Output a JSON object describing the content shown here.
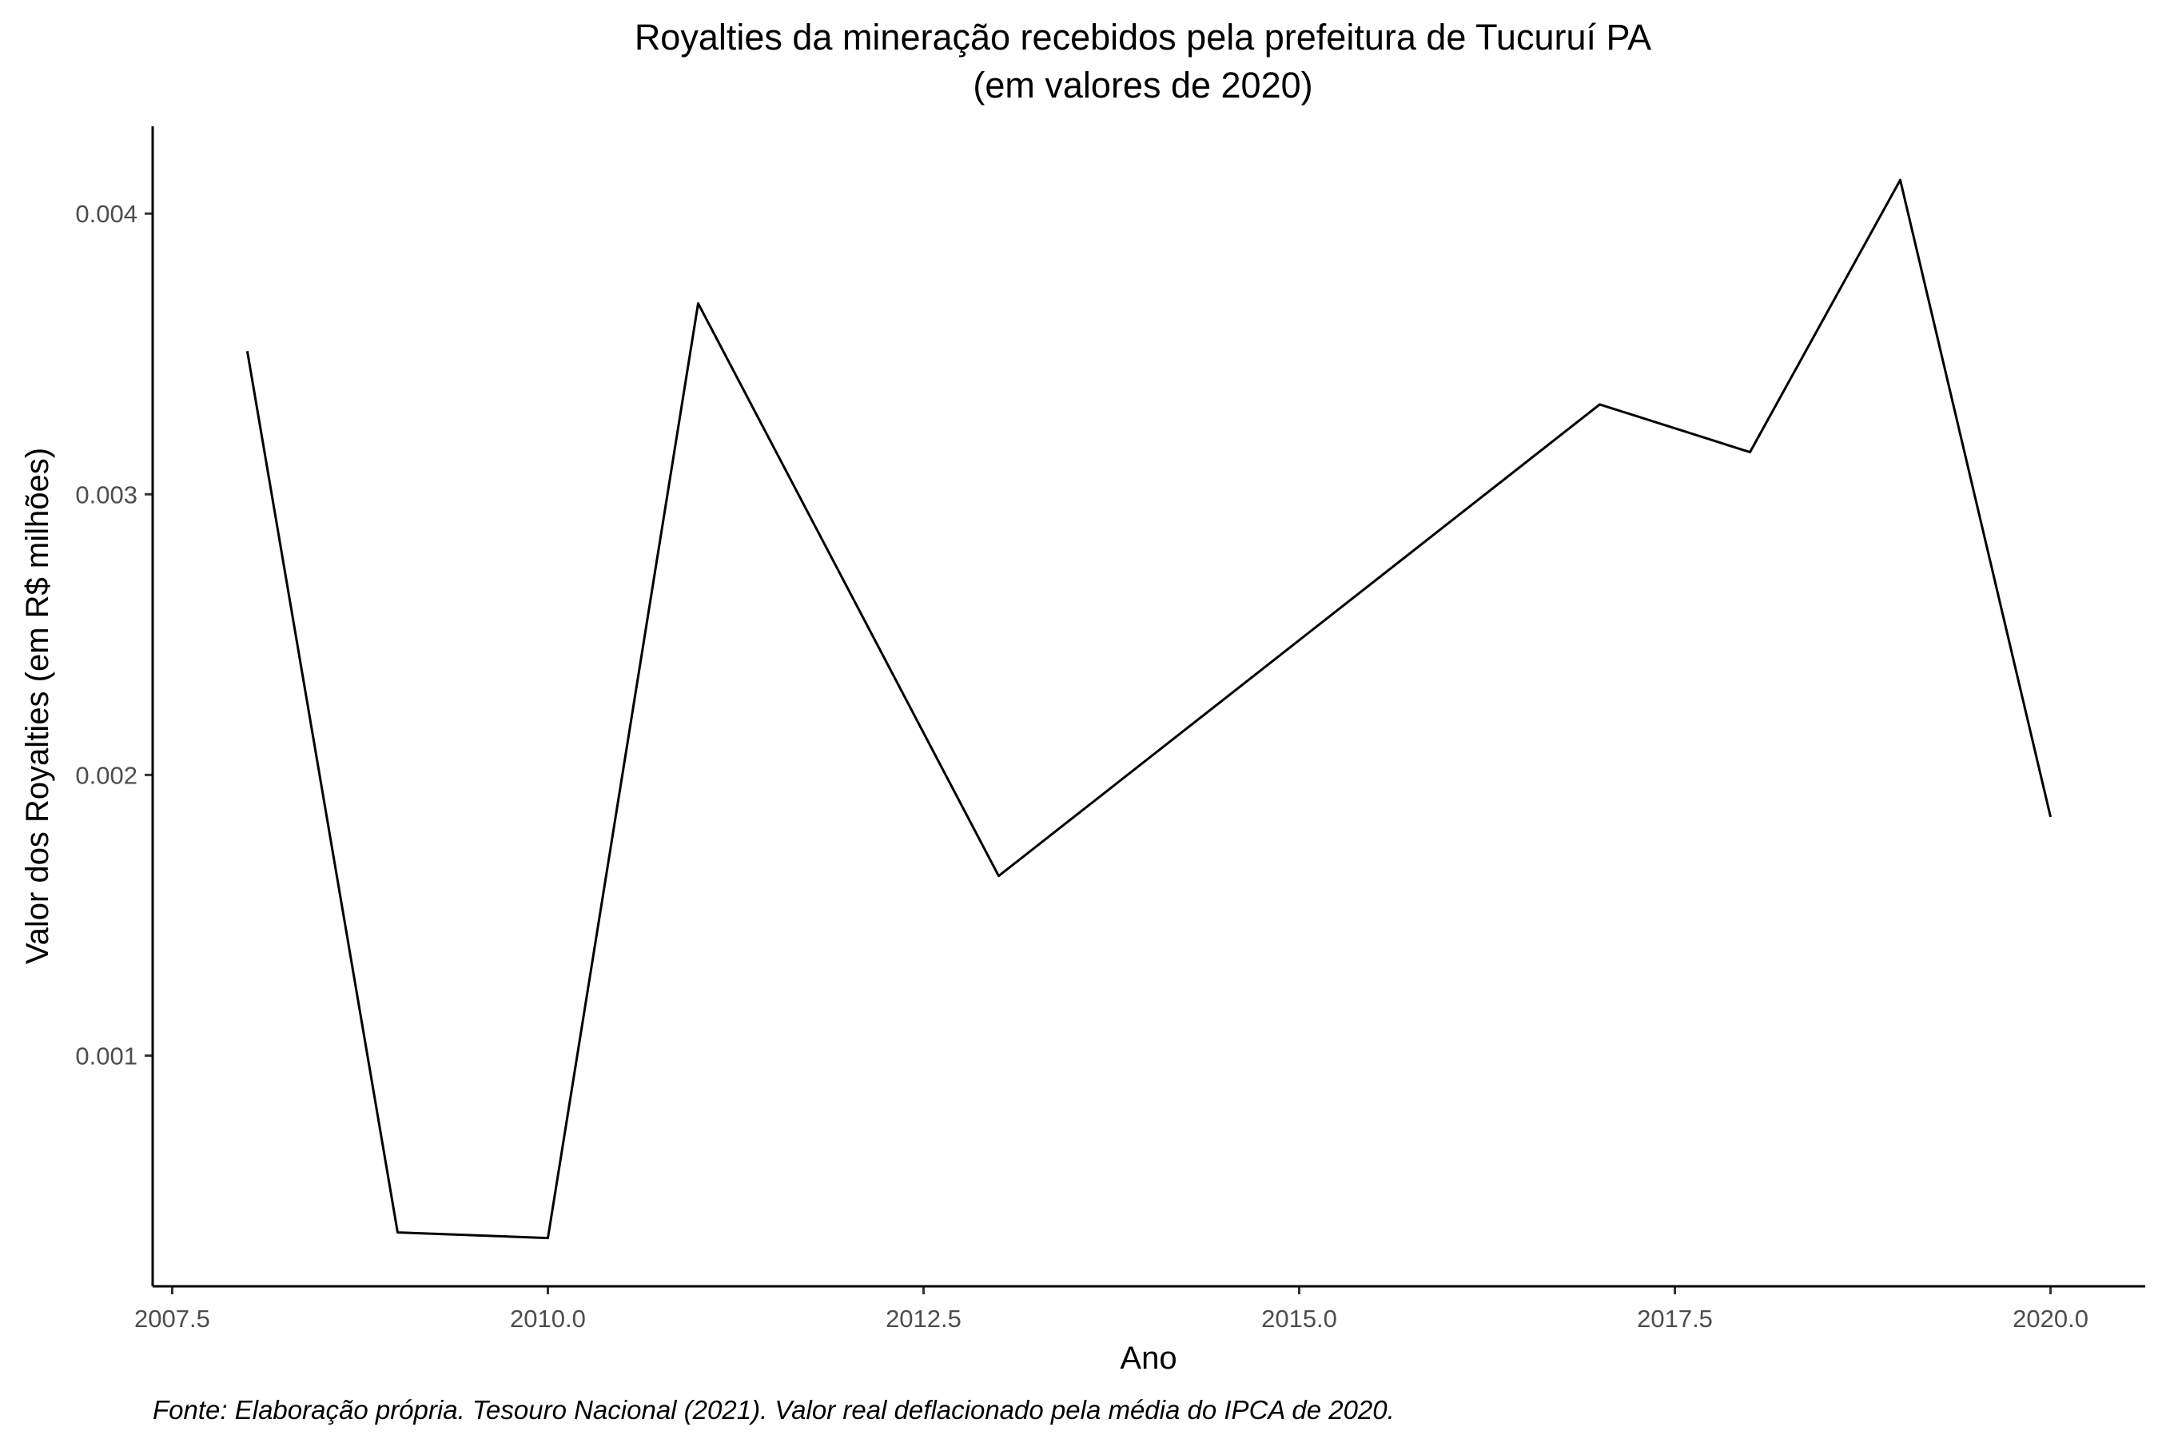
{
  "chart_data": {
    "type": "line",
    "title": "Royalties da mineração recebidos pela prefeitura de Tucuruí PA",
    "subtitle": "(em valores de 2020)",
    "xlabel": "Ano",
    "ylabel": "Valor dos Royalties (em R$ milhões)",
    "caption": "Fonte: Elaboração própria. Tesouro Nacional (2021). Valor real deflacionado pela média do IPCA de 2020.",
    "x_ticks": [
      2007.5,
      2010.0,
      2012.5,
      2015.0,
      2017.5,
      2020.0
    ],
    "x_tick_labels": [
      "2007.5",
      "2010.0",
      "2012.5",
      "2015.0",
      "2017.5",
      "2020.0"
    ],
    "y_ticks": [
      0.001,
      0.002,
      0.003,
      0.004
    ],
    "y_tick_labels": [
      "0.001",
      "0.002",
      "0.003",
      "0.004"
    ],
    "xlim": [
      2007.37,
      2020.63
    ],
    "ylim": [
      0.000178,
      0.004311
    ],
    "grid": false,
    "line_color": "#000000",
    "series": [
      {
        "x": [
          2008,
          2009,
          2010,
          2011,
          2013,
          2017,
          2018,
          2019,
          2020
        ],
        "values": [
          0.00351,
          0.00037,
          0.00035,
          0.00368,
          0.00164,
          0.00332,
          0.00315,
          0.00412,
          0.00185
        ]
      }
    ]
  }
}
